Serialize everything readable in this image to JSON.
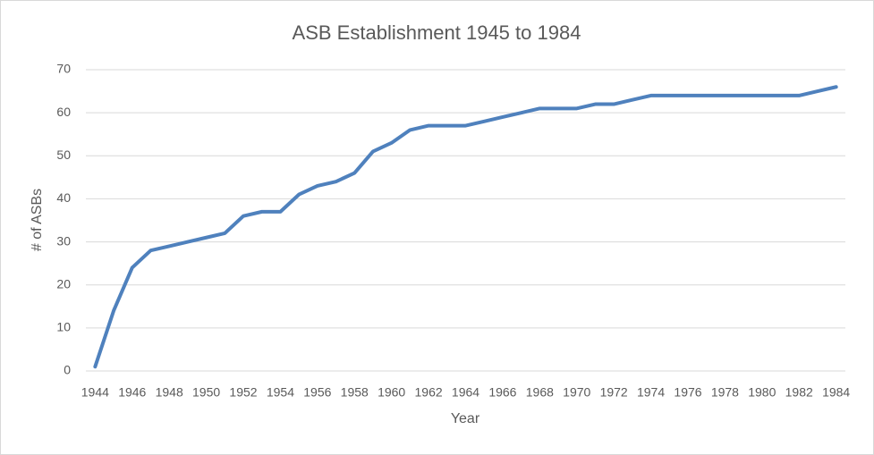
{
  "chart_data": {
    "type": "line",
    "title": "ASB Establishment 1945 to 1984",
    "x_label": "Year",
    "y_label": "# of ASBs",
    "categories": [
      "1944",
      null,
      "1946",
      null,
      "1948",
      null,
      "1950",
      null,
      "1952",
      null,
      "1954",
      null,
      "1956",
      null,
      "1958",
      null,
      "1960",
      null,
      "1962",
      null,
      "1964",
      null,
      "1966",
      null,
      "1968",
      null,
      "1970",
      null,
      "1972",
      null,
      "1974",
      null,
      "1976",
      null,
      "1978",
      null,
      "1980",
      null,
      "1982",
      null,
      "1984"
    ],
    "series": [
      {
        "name": "# of ASBs",
        "color": "#4f81bd",
        "values": [
          1,
          14,
          24,
          28,
          29,
          30,
          31,
          32,
          36,
          37,
          37,
          41,
          43,
          44,
          46,
          51,
          53,
          56,
          57,
          57,
          57,
          58,
          59,
          60,
          61,
          61,
          61,
          62,
          62,
          63,
          64,
          64,
          64,
          64,
          64,
          64,
          64,
          64,
          64,
          65,
          66
        ]
      }
    ],
    "ylim": [
      0,
      70
    ],
    "yticks": [
      0,
      10,
      20,
      30,
      40,
      50,
      60,
      70
    ],
    "grid": true
  }
}
